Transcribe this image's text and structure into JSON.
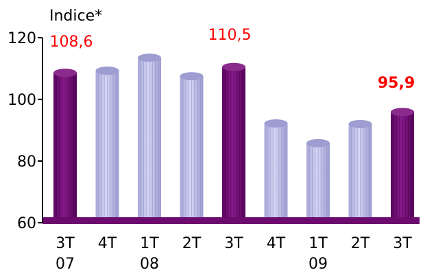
{
  "chart_data": {
    "type": "bar",
    "ylabel": "Indice*",
    "ylim": [
      60,
      120
    ],
    "yticks": [
      60,
      80,
      100,
      120
    ],
    "grid": false,
    "legend": "none",
    "categories": [
      {
        "line1": "3T",
        "line2": "07"
      },
      {
        "line1": "4T",
        "line2": ""
      },
      {
        "line1": "1T",
        "line2": "08"
      },
      {
        "line1": "2T",
        "line2": ""
      },
      {
        "line1": "3T",
        "line2": ""
      },
      {
        "line1": "4T",
        "line2": ""
      },
      {
        "line1": "1T",
        "line2": "09"
      },
      {
        "line1": "2T",
        "line2": ""
      },
      {
        "line1": "3T",
        "line2": ""
      }
    ],
    "values": [
      108.6,
      109.3,
      113.5,
      107.5,
      110.5,
      92.2,
      85.8,
      92.0,
      95.9
    ],
    "highlighted": [
      true,
      false,
      false,
      false,
      true,
      false,
      false,
      false,
      true
    ],
    "data_labels": [
      {
        "index": 0,
        "text": "108,6",
        "bold": false
      },
      {
        "index": 4,
        "text": "110,5",
        "bold": false
      },
      {
        "index": 8,
        "text": "95,9",
        "bold": true
      }
    ],
    "colors": {
      "highlight": "#6d0a6f",
      "highlight_top": "#8a2a8c",
      "normal": "#bcbcea",
      "normal_top": "#9d9dd2",
      "floor": "#6d0a6f",
      "label": "#ff0000",
      "axis": "#000000"
    }
  }
}
